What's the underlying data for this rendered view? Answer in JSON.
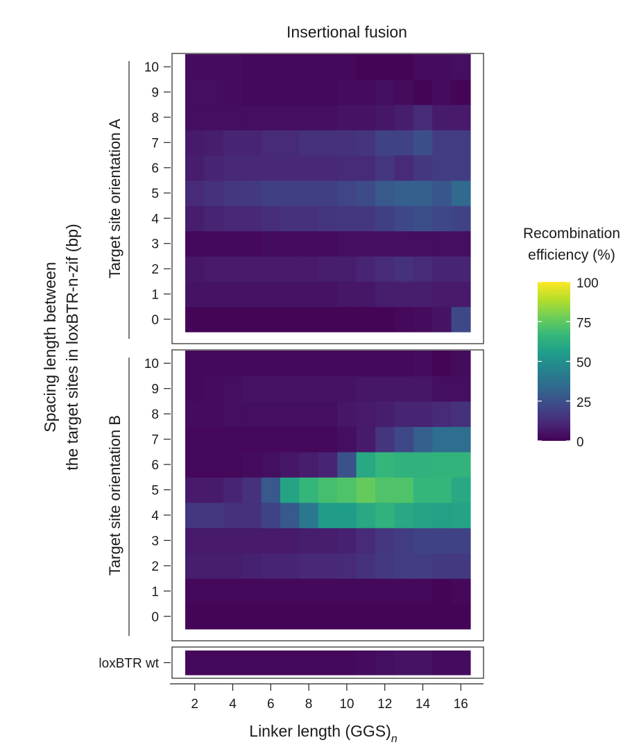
{
  "chart_data": {
    "type": "heatmap",
    "title": "Insertional fusion",
    "xlabel_main": "Linker length (GGS)",
    "xlabel_sub": "n",
    "ylabel_line1": "Spacing length between",
    "ylabel_line2": "the target sites in loxBTR-n-zif (bp)",
    "x": [
      2,
      3,
      4,
      5,
      6,
      7,
      8,
      9,
      10,
      11,
      12,
      13,
      14,
      15,
      16
    ],
    "x_ticks": [
      "2",
      "4",
      "6",
      "8",
      "10",
      "12",
      "14",
      "16"
    ],
    "x_tick_values": [
      2,
      4,
      6,
      8,
      10,
      12,
      14,
      16
    ],
    "xlim": [
      1.5,
      16.5
    ],
    "y_ticks": [
      "0",
      "1",
      "2",
      "3",
      "4",
      "5",
      "6",
      "7",
      "8",
      "9",
      "10"
    ],
    "colorbar": {
      "title_line1": "Recombination",
      "title_line2": "efficiency (%)",
      "ticks": [
        "0",
        "25",
        "50",
        "75",
        "100"
      ],
      "tick_values": [
        0,
        25,
        50,
        75,
        100
      ],
      "range": [
        0,
        100
      ],
      "colormap": "viridis"
    },
    "panels": [
      {
        "label": "Target site orientation A",
        "rows": [
          "0",
          "1",
          "2",
          "3",
          "4",
          "5",
          "6",
          "7",
          "8",
          "9",
          "10"
        ],
        "values": [
          [
            1,
            1,
            1,
            1,
            1,
            1,
            1,
            1,
            1,
            1,
            1,
            2,
            3,
            5,
            22
          ],
          [
            5,
            5,
            5,
            5,
            5,
            5,
            5,
            5,
            6,
            6,
            8,
            8,
            8,
            7,
            7
          ],
          [
            6,
            7,
            7,
            7,
            7,
            7,
            7,
            8,
            8,
            10,
            12,
            14,
            12,
            10,
            10
          ],
          [
            2,
            2,
            2,
            2,
            3,
            3,
            3,
            3,
            4,
            4,
            4,
            4,
            4,
            4,
            4
          ],
          [
            8,
            10,
            11,
            11,
            13,
            14,
            14,
            15,
            16,
            16,
            19,
            22,
            24,
            22,
            20
          ],
          [
            12,
            14,
            16,
            17,
            19,
            19,
            19,
            19,
            21,
            23,
            28,
            30,
            30,
            27,
            34
          ],
          [
            8,
            10,
            11,
            11,
            11,
            11,
            11,
            11,
            12,
            12,
            16,
            12,
            16,
            18,
            18
          ],
          [
            7,
            8,
            10,
            10,
            12,
            12,
            14,
            14,
            14,
            15,
            20,
            20,
            24,
            18,
            18
          ],
          [
            4,
            4,
            4,
            4,
            4,
            4,
            4,
            4,
            5,
            5,
            6,
            8,
            12,
            7,
            7
          ],
          [
            4,
            4,
            3,
            2,
            2,
            2,
            2,
            2,
            3,
            3,
            4,
            3,
            1,
            3,
            1
          ],
          [
            3,
            3,
            3,
            2,
            2,
            2,
            2,
            2,
            2,
            1,
            1,
            1,
            3,
            3,
            4
          ]
        ]
      },
      {
        "label": "Target site orientation B",
        "rows": [
          "0",
          "1",
          "2",
          "3",
          "4",
          "5",
          "6",
          "7",
          "8",
          "9",
          "10"
        ],
        "values": [
          [
            1,
            1,
            1,
            1,
            1,
            1,
            1,
            1,
            1,
            1,
            1,
            1,
            1,
            1,
            1
          ],
          [
            2,
            2,
            2,
            2,
            2,
            2,
            2,
            2,
            2,
            2,
            2,
            2,
            2,
            1,
            2
          ],
          [
            8,
            8,
            8,
            9,
            10,
            10,
            11,
            11,
            12,
            14,
            17,
            18,
            18,
            17,
            17
          ],
          [
            7,
            7,
            7,
            7,
            7,
            7,
            8,
            8,
            9,
            12,
            16,
            18,
            20,
            20,
            20
          ],
          [
            16,
            16,
            14,
            14,
            20,
            28,
            40,
            55,
            55,
            60,
            64,
            60,
            58,
            57,
            58
          ],
          [
            7,
            7,
            10,
            14,
            28,
            58,
            66,
            70,
            72,
            76,
            72,
            72,
            66,
            66,
            60
          ],
          [
            2,
            2,
            2,
            3,
            4,
            6,
            8,
            10,
            25,
            60,
            66,
            64,
            64,
            65,
            65
          ],
          [
            2,
            2,
            2,
            2,
            2,
            2,
            2,
            2,
            4,
            7,
            15,
            22,
            30,
            36,
            36
          ],
          [
            3,
            3,
            4,
            4,
            4,
            4,
            4,
            4,
            6,
            7,
            8,
            10,
            10,
            12,
            14
          ],
          [
            2,
            3,
            4,
            5,
            5,
            5,
            5,
            5,
            5,
            6,
            6,
            6,
            6,
            4,
            4
          ],
          [
            2,
            2,
            2,
            2,
            2,
            2,
            2,
            2,
            2,
            2,
            2,
            2,
            3,
            1,
            3
          ]
        ]
      },
      {
        "label": "",
        "rows": [
          "loxBTR wt"
        ],
        "values": [
          [
            2,
            2,
            2,
            2,
            2,
            2,
            2,
            2,
            2,
            3,
            4,
            5,
            5,
            3,
            3
          ]
        ]
      }
    ]
  }
}
